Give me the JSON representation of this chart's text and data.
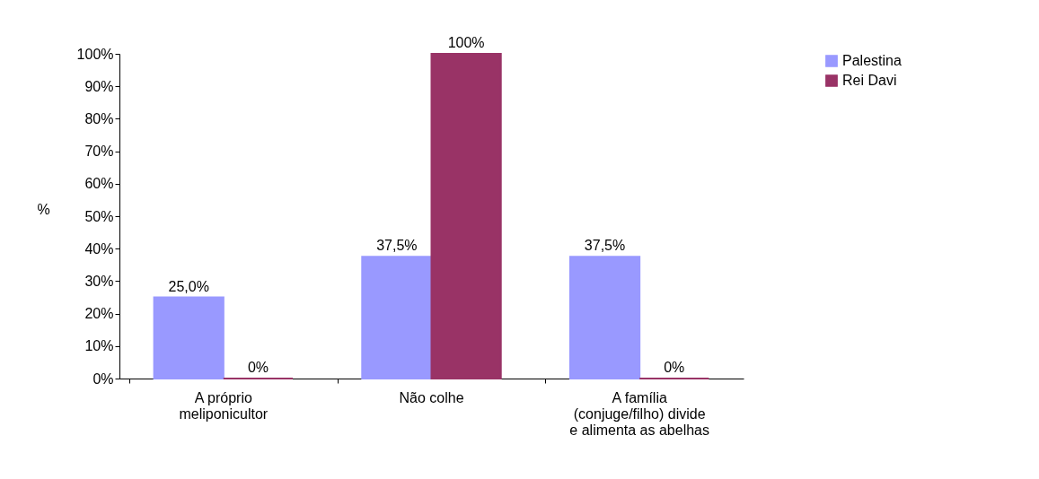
{
  "chart_data": {
    "type": "bar",
    "ylabel": "%",
    "categories": [
      "A próprio meliponicultor",
      "Não colhe",
      "A família (conjuge/filho) divide e alimenta as abelhas"
    ],
    "series": [
      {
        "name": "Palestina",
        "color": "#9999ff",
        "values": [
          25,
          37.5,
          37.5
        ],
        "value_labels": [
          "25,0%",
          "37,5%",
          "37,5%"
        ]
      },
      {
        "name": "Rei Davi",
        "color": "#993366",
        "values": [
          0,
          100,
          0
        ],
        "value_labels": [
          "0%",
          "100%",
          "0%"
        ]
      }
    ],
    "ylim": [
      0,
      100
    ],
    "yticks": [
      {
        "value": 0,
        "label": "0%"
      },
      {
        "value": 10,
        "label": "10%"
      },
      {
        "value": 20,
        "label": "20%"
      },
      {
        "value": 30,
        "label": "30%"
      },
      {
        "value": 40,
        "label": "40%"
      },
      {
        "value": 50,
        "label": "50%"
      },
      {
        "value": 60,
        "label": "60%"
      },
      {
        "value": 70,
        "label": "70%"
      },
      {
        "value": 80,
        "label": "80%"
      },
      {
        "value": 90,
        "label": "90%"
      },
      {
        "value": 100,
        "label": "100%"
      }
    ],
    "grid": false,
    "legend": "right"
  }
}
